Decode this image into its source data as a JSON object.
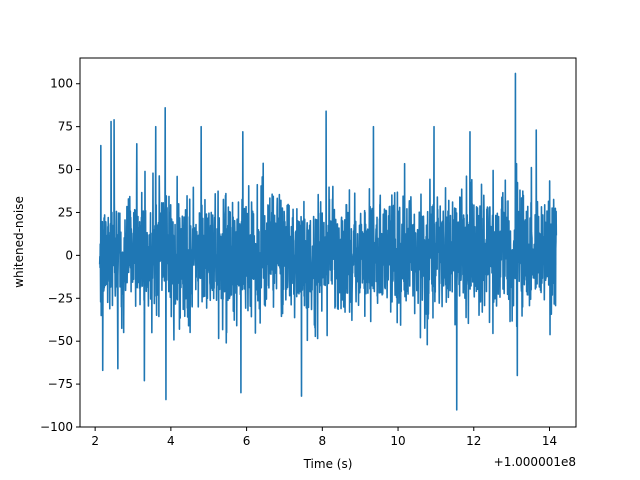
{
  "chart_data": {
    "type": "line",
    "title": "",
    "xlabel": "Time (s)",
    "ylabel": "whitened-noise",
    "x_offset_label": "+1.000001e8",
    "xlim": [
      1.6,
      14.7
    ],
    "ylim": [
      -100,
      115
    ],
    "xticks": [
      2,
      4,
      6,
      8,
      10,
      12,
      14
    ],
    "xtick_labels": [
      "2",
      "4",
      "6",
      "8",
      "10",
      "12",
      "14"
    ],
    "yticks": [
      -100,
      -75,
      -50,
      -25,
      0,
      25,
      50,
      75,
      100
    ],
    "ytick_labels": [
      "−100",
      "−75",
      "−50",
      "−25",
      "0",
      "25",
      "50",
      "75",
      "100"
    ],
    "grid": false,
    "series": [
      {
        "color": "#1f77b4",
        "x_range": [
          2.12,
          14.18
        ],
        "typical_range": [
          -42,
          42
        ],
        "extremes": [
          {
            "x": 2.15,
            "y": 64
          },
          {
            "x": 2.2,
            "y": -67
          },
          {
            "x": 2.42,
            "y": 78
          },
          {
            "x": 2.5,
            "y": 79
          },
          {
            "x": 2.6,
            "y": -66
          },
          {
            "x": 3.1,
            "y": 65
          },
          {
            "x": 3.3,
            "y": -73
          },
          {
            "x": 3.6,
            "y": 75
          },
          {
            "x": 3.85,
            "y": 86
          },
          {
            "x": 3.87,
            "y": -84
          },
          {
            "x": 4.8,
            "y": 75
          },
          {
            "x": 5.85,
            "y": -80
          },
          {
            "x": 5.9,
            "y": 72
          },
          {
            "x": 7.45,
            "y": -82
          },
          {
            "x": 8.1,
            "y": 84
          },
          {
            "x": 9.35,
            "y": 75
          },
          {
            "x": 10.95,
            "y": 75
          },
          {
            "x": 11.55,
            "y": -90
          },
          {
            "x": 11.9,
            "y": 72
          },
          {
            "x": 13.1,
            "y": 106
          },
          {
            "x": 13.15,
            "y": -70
          },
          {
            "x": 13.65,
            "y": 73
          }
        ]
      }
    ]
  }
}
